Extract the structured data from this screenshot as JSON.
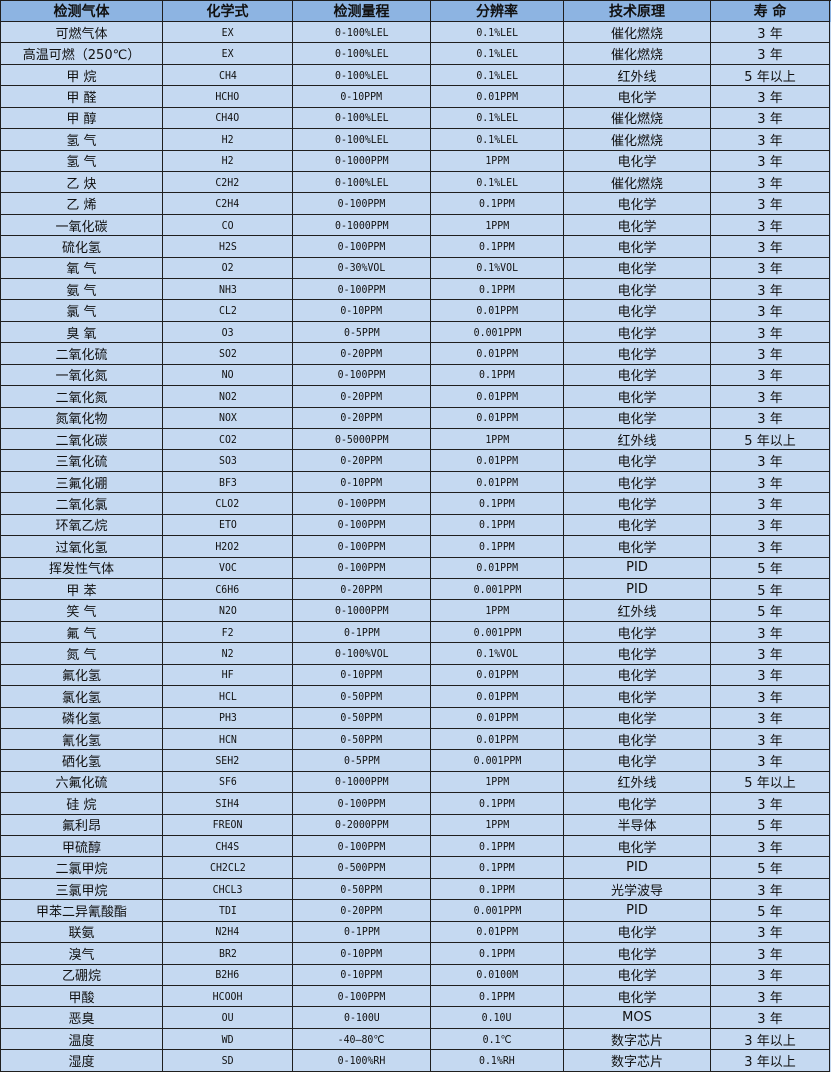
{
  "colors": {
    "header_bg": "#8db4e2",
    "cell_bg": "#c5d9f1",
    "border": "#1f1f1f"
  },
  "table": {
    "headers": [
      "检测气体",
      "化学式",
      "检测量程",
      "分辨率",
      "技术原理",
      "寿 命"
    ],
    "rows": [
      [
        "可燃气体",
        "EX",
        "0-100%LEL",
        "0.1%LEL",
        "催化燃烧",
        "3 年"
      ],
      [
        "高温可燃（250℃）",
        "EX",
        "0-100%LEL",
        "0.1%LEL",
        "催化燃烧",
        "3 年"
      ],
      [
        "甲 烷",
        "CH4",
        "0-100%LEL",
        "0.1%LEL",
        "红外线",
        "5 年以上"
      ],
      [
        "甲 醛",
        "HCHO",
        "0-10PPM",
        "0.01PPM",
        "电化学",
        "3 年"
      ],
      [
        "甲 醇",
        "CH4O",
        "0-100%LEL",
        "0.1%LEL",
        "催化燃烧",
        "3 年"
      ],
      [
        "氢 气",
        "H2",
        "0-100%LEL",
        "0.1%LEL",
        "催化燃烧",
        "3 年"
      ],
      [
        "氢 气",
        "H2",
        "0-1000PPM",
        "1PPM",
        "电化学",
        "3 年"
      ],
      [
        "乙 炔",
        "C2H2",
        "0-100%LEL",
        "0.1%LEL",
        "催化燃烧",
        "3 年"
      ],
      [
        "乙 烯",
        "C2H4",
        "0-100PPM",
        "0.1PPM",
        "电化学",
        "3 年"
      ],
      [
        "一氧化碳",
        "CO",
        "0-1000PPM",
        "1PPM",
        "电化学",
        "3 年"
      ],
      [
        "硫化氢",
        "H2S",
        "0-100PPM",
        "0.1PPM",
        "电化学",
        "3 年"
      ],
      [
        "氧 气",
        "O2",
        "0-30%VOL",
        "0.1%VOL",
        "电化学",
        "3 年"
      ],
      [
        "氨 气",
        "NH3",
        "0-100PPM",
        "0.1PPM",
        "电化学",
        "3 年"
      ],
      [
        "氯 气",
        "CL2",
        "0-10PPM",
        "0.01PPM",
        "电化学",
        "3 年"
      ],
      [
        "臭 氧",
        "O3",
        "0-5PPM",
        "0.001PPM",
        "电化学",
        "3 年"
      ],
      [
        "二氧化硫",
        "SO2",
        "0-20PPM",
        "0.01PPM",
        "电化学",
        "3 年"
      ],
      [
        "一氧化氮",
        "NO",
        "0-100PPM",
        "0.1PPM",
        "电化学",
        "3 年"
      ],
      [
        "二氧化氮",
        "NO2",
        "0-20PPM",
        "0.01PPM",
        "电化学",
        "3 年"
      ],
      [
        "氮氧化物",
        "NOX",
        "0-20PPM",
        "0.01PPM",
        "电化学",
        "3 年"
      ],
      [
        "二氧化碳",
        "CO2",
        "0-5000PPM",
        "1PPM",
        "红外线",
        "5 年以上"
      ],
      [
        "三氧化硫",
        "SO3",
        "0-20PPM",
        "0.01PPM",
        "电化学",
        "3 年"
      ],
      [
        "三氟化硼",
        "BF3",
        "0-10PPM",
        "0.01PPM",
        "电化学",
        "3 年"
      ],
      [
        "二氧化氯",
        "CLO2",
        "0-100PPM",
        "0.1PPM",
        "电化学",
        "3 年"
      ],
      [
        "环氧乙烷",
        "ETO",
        "0-100PPM",
        "0.1PPM",
        "电化学",
        "3 年"
      ],
      [
        "过氧化氢",
        "H2O2",
        "0-100PPM",
        "0.1PPM",
        "电化学",
        "3 年"
      ],
      [
        "挥发性气体",
        "VOC",
        "0-100PPM",
        "0.01PPM",
        "PID",
        "5 年"
      ],
      [
        "甲 苯",
        "C6H6",
        "0-20PPM",
        "0.001PPM",
        "PID",
        "5 年"
      ],
      [
        "笑 气",
        "N2O",
        "0-1000PPM",
        "1PPM",
        "红外线",
        "5 年"
      ],
      [
        "氟 气",
        "F2",
        "0-1PPM",
        "0.001PPM",
        "电化学",
        "3 年"
      ],
      [
        "氮 气",
        "N2",
        "0-100%VOL",
        "0.1%VOL",
        "电化学",
        "3 年"
      ],
      [
        "氟化氢",
        "HF",
        "0-10PPM",
        "0.01PPM",
        "电化学",
        "3 年"
      ],
      [
        "氯化氢",
        "HCL",
        "0-50PPM",
        "0.01PPM",
        "电化学",
        "3 年"
      ],
      [
        "磷化氢",
        "PH3",
        "0-50PPM",
        "0.01PPM",
        "电化学",
        "3 年"
      ],
      [
        "氰化氢",
        "HCN",
        "0-50PPM",
        "0.01PPM",
        "电化学",
        "3 年"
      ],
      [
        "硒化氢",
        "SEH2",
        "0-5PPM",
        "0.001PPM",
        "电化学",
        "3 年"
      ],
      [
        "六氟化硫",
        "SF6",
        "0-1000PPM",
        "1PPM",
        "红外线",
        "5 年以上"
      ],
      [
        "硅 烷",
        "SIH4",
        "0-100PPM",
        "0.1PPM",
        "电化学",
        "3 年"
      ],
      [
        "氟利昂",
        "FREON",
        "0-2000PPM",
        "1PPM",
        "半导体",
        "5 年"
      ],
      [
        "甲硫醇",
        "CH4S",
        "0-100PPM",
        "0.1PPM",
        "电化学",
        "3 年"
      ],
      [
        "二氯甲烷",
        "CH2CL2",
        "0-500PPM",
        "0.1PPM",
        "PID",
        "5 年"
      ],
      [
        "三氯甲烷",
        "CHCL3",
        "0-50PPM",
        "0.1PPM",
        "光学波导",
        "3 年"
      ],
      [
        "甲苯二异氰酸酯",
        "TDI",
        "0-20PPM",
        "0.001PPM",
        "PID",
        "5 年"
      ],
      [
        "联氨",
        "N2H4",
        "0-1PPM",
        "0.01PPM",
        "电化学",
        "3 年"
      ],
      [
        "溴气",
        "BR2",
        "0-10PPM",
        "0.1PPM",
        "电化学",
        "3 年"
      ],
      [
        "乙硼烷",
        "B2H6",
        "0-10PPM",
        "0.0100M",
        "电化学",
        "3 年"
      ],
      [
        "甲酸",
        "HCOOH",
        "0-100PPM",
        "0.1PPM",
        "电化学",
        "3 年"
      ],
      [
        "恶臭",
        "OU",
        "0-100U",
        "0.10U",
        "MOS",
        "3 年"
      ],
      [
        "温度",
        "WD",
        "-40—80℃",
        "0.1℃",
        "数字芯片",
        "3 年以上"
      ],
      [
        "湿度",
        "SD",
        "0-100%RH",
        "0.1%RH",
        "数字芯片",
        "3 年以上"
      ]
    ]
  }
}
